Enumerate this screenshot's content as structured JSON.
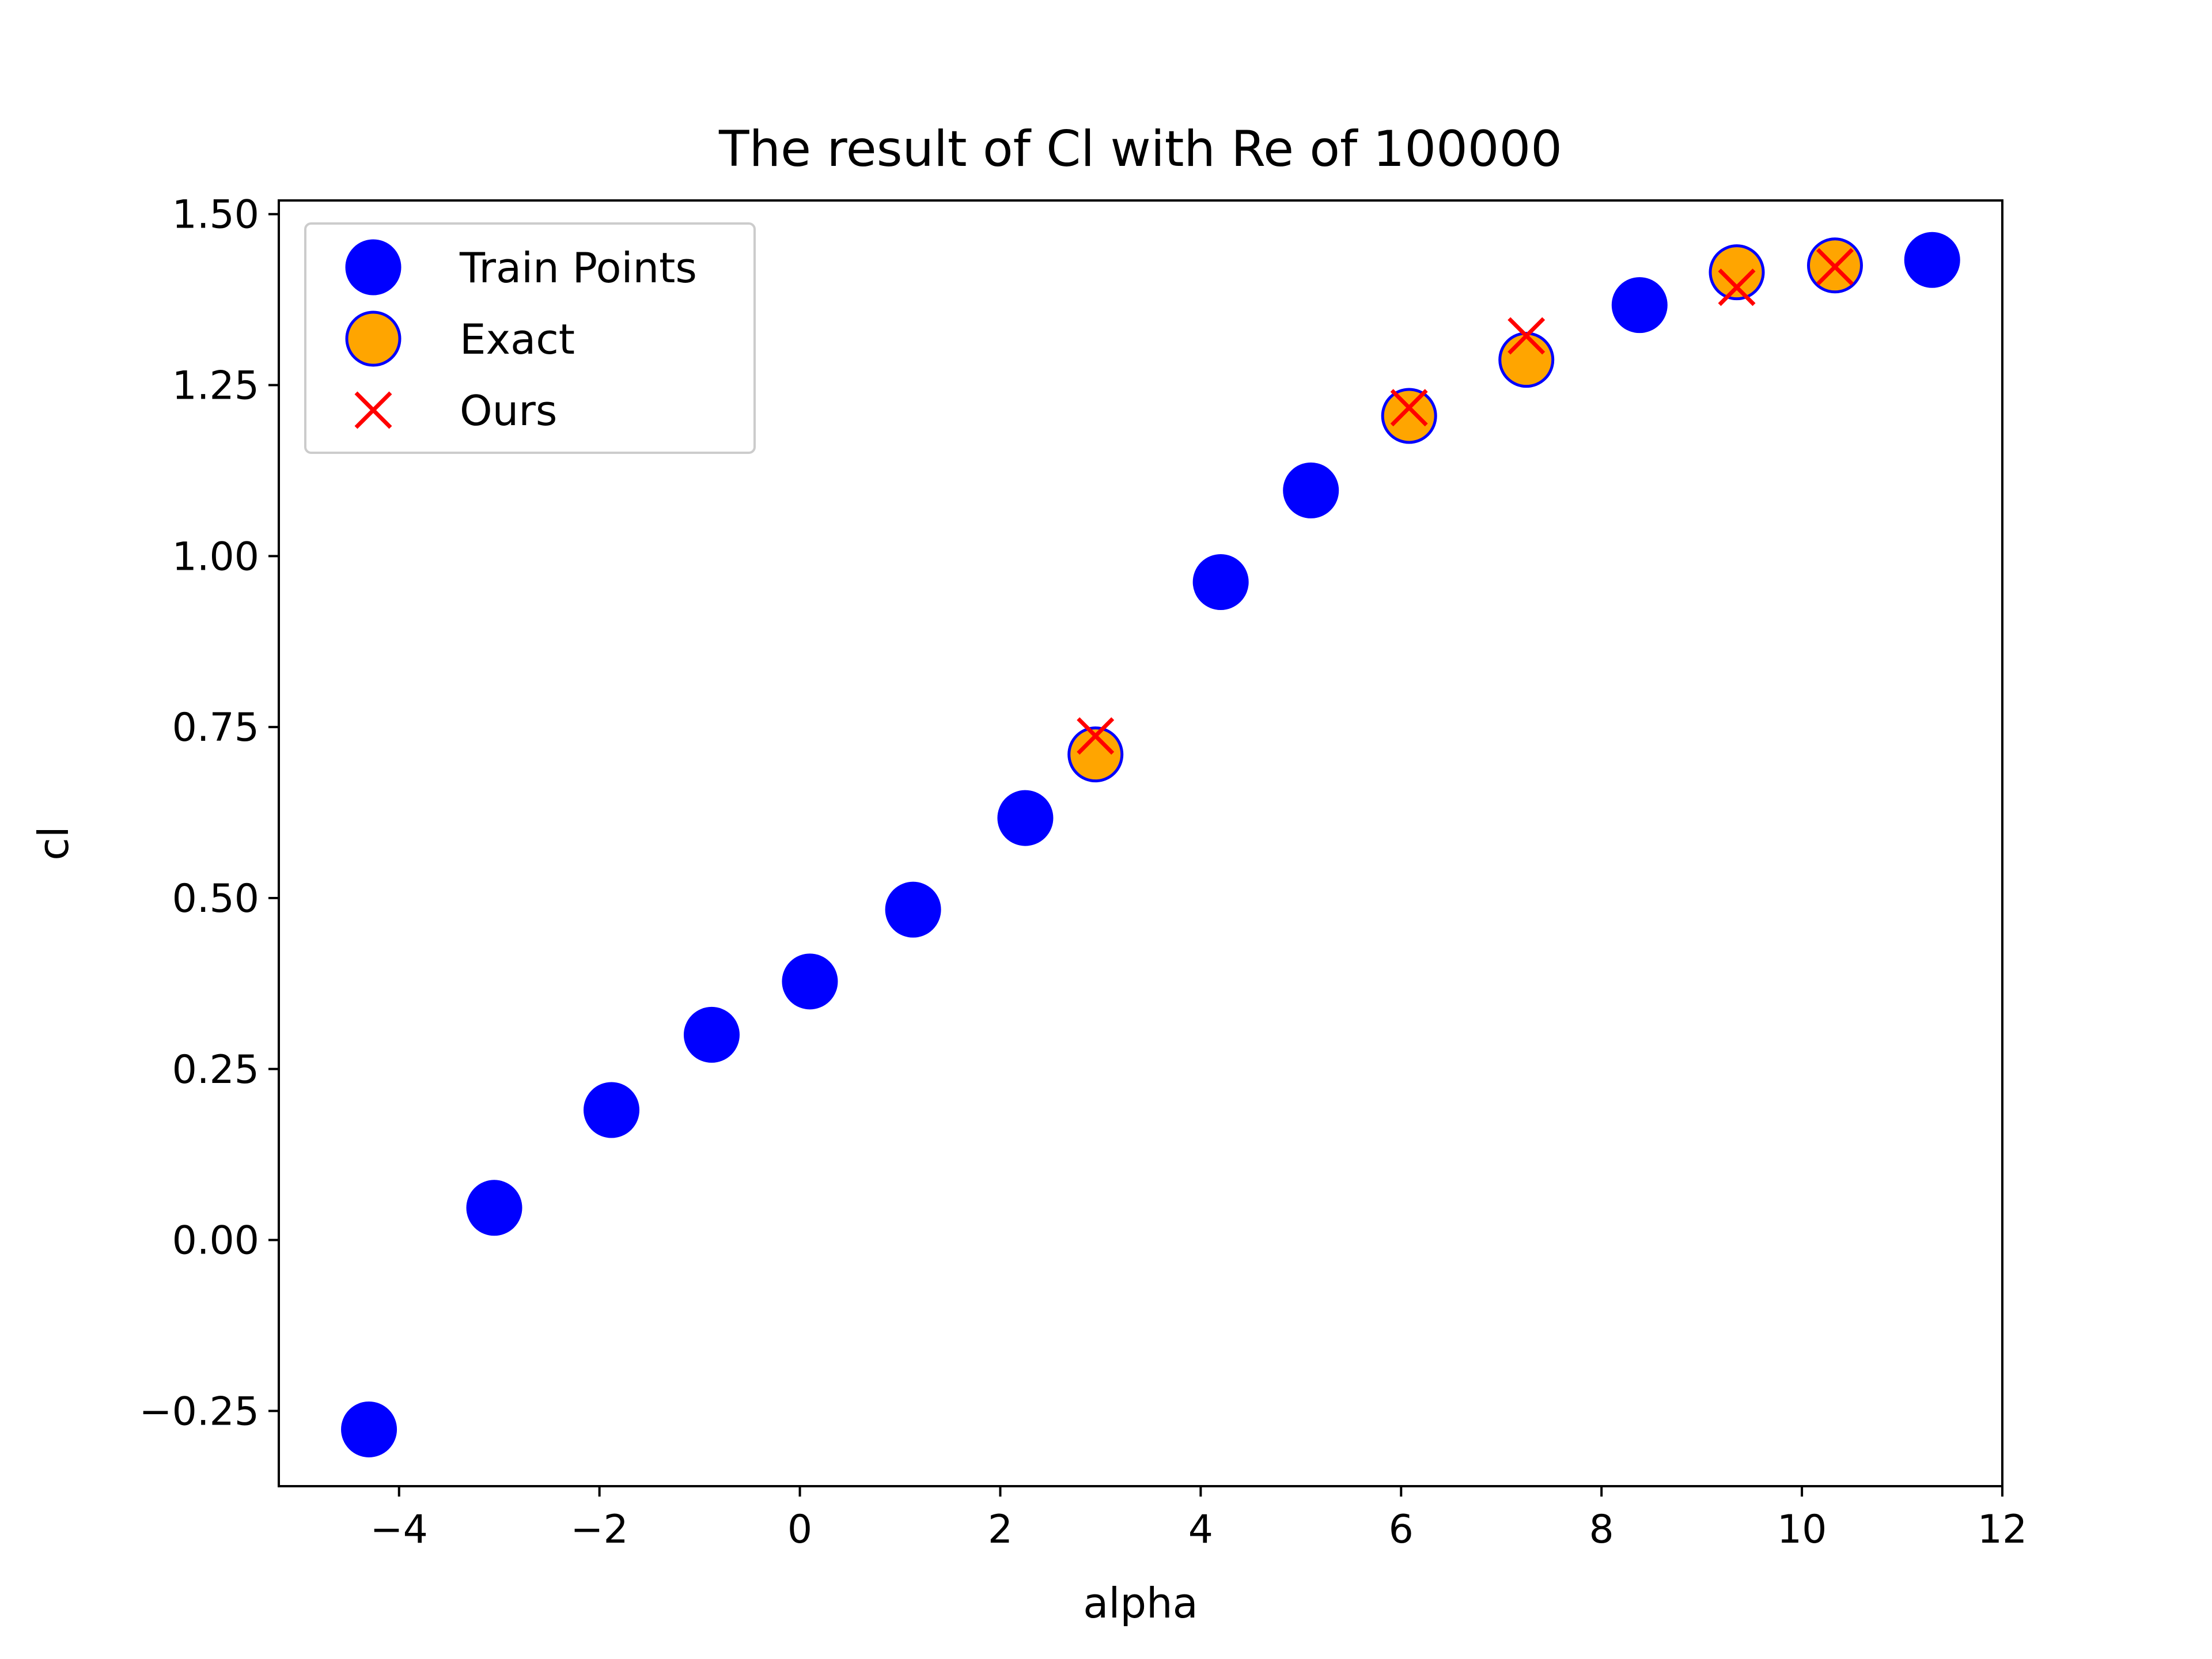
{
  "chart_data": {
    "type": "scatter",
    "title": "The result of Cl with Re of 100000",
    "xlabel": "alpha",
    "ylabel": "cl",
    "xlim": [
      -5.2,
      12.0
    ],
    "ylim": [
      -0.36,
      1.52
    ],
    "xticks": [
      -4,
      -2,
      0,
      2,
      4,
      6,
      8,
      10,
      12
    ],
    "xtick_labels": [
      "−4",
      "−2",
      "0",
      "2",
      "4",
      "6",
      "8",
      "10",
      "12"
    ],
    "yticks": [
      -0.25,
      0.0,
      0.25,
      0.5,
      0.75,
      1.0,
      1.25,
      1.5
    ],
    "ytick_labels": [
      "−0.25",
      "0.00",
      "0.25",
      "0.50",
      "0.75",
      "1.00",
      "1.25",
      "1.50"
    ],
    "grid": false,
    "legend_position": "top-left",
    "series": [
      {
        "name": "Train Points",
        "marker": "circle",
        "color": "#0000ff",
        "edge_color": "#0000ff",
        "points": [
          {
            "x": -4.3,
            "y": -0.277
          },
          {
            "x": -3.05,
            "y": 0.047
          },
          {
            "x": -1.88,
            "y": 0.19
          },
          {
            "x": -0.88,
            "y": 0.3
          },
          {
            "x": 0.1,
            "y": 0.378
          },
          {
            "x": 1.13,
            "y": 0.483
          },
          {
            "x": 2.25,
            "y": 0.617
          },
          {
            "x": 4.2,
            "y": 0.962
          },
          {
            "x": 5.1,
            "y": 1.096
          },
          {
            "x": 8.38,
            "y": 1.367
          },
          {
            "x": 11.3,
            "y": 1.433
          }
        ]
      },
      {
        "name": "Exact",
        "marker": "circle",
        "color": "#ffa500",
        "edge_color": "#0000ff",
        "points": [
          {
            "x": 2.95,
            "y": 0.71
          },
          {
            "x": 6.08,
            "y": 1.205
          },
          {
            "x": 7.25,
            "y": 1.287
          },
          {
            "x": 9.35,
            "y": 1.415
          },
          {
            "x": 10.33,
            "y": 1.425
          }
        ]
      },
      {
        "name": "Ours",
        "marker": "x",
        "color": "#ff0000",
        "points": [
          {
            "x": 2.95,
            "y": 0.737
          },
          {
            "x": 6.08,
            "y": 1.217
          },
          {
            "x": 7.25,
            "y": 1.322
          },
          {
            "x": 9.35,
            "y": 1.393
          },
          {
            "x": 10.33,
            "y": 1.423
          }
        ]
      }
    ]
  }
}
